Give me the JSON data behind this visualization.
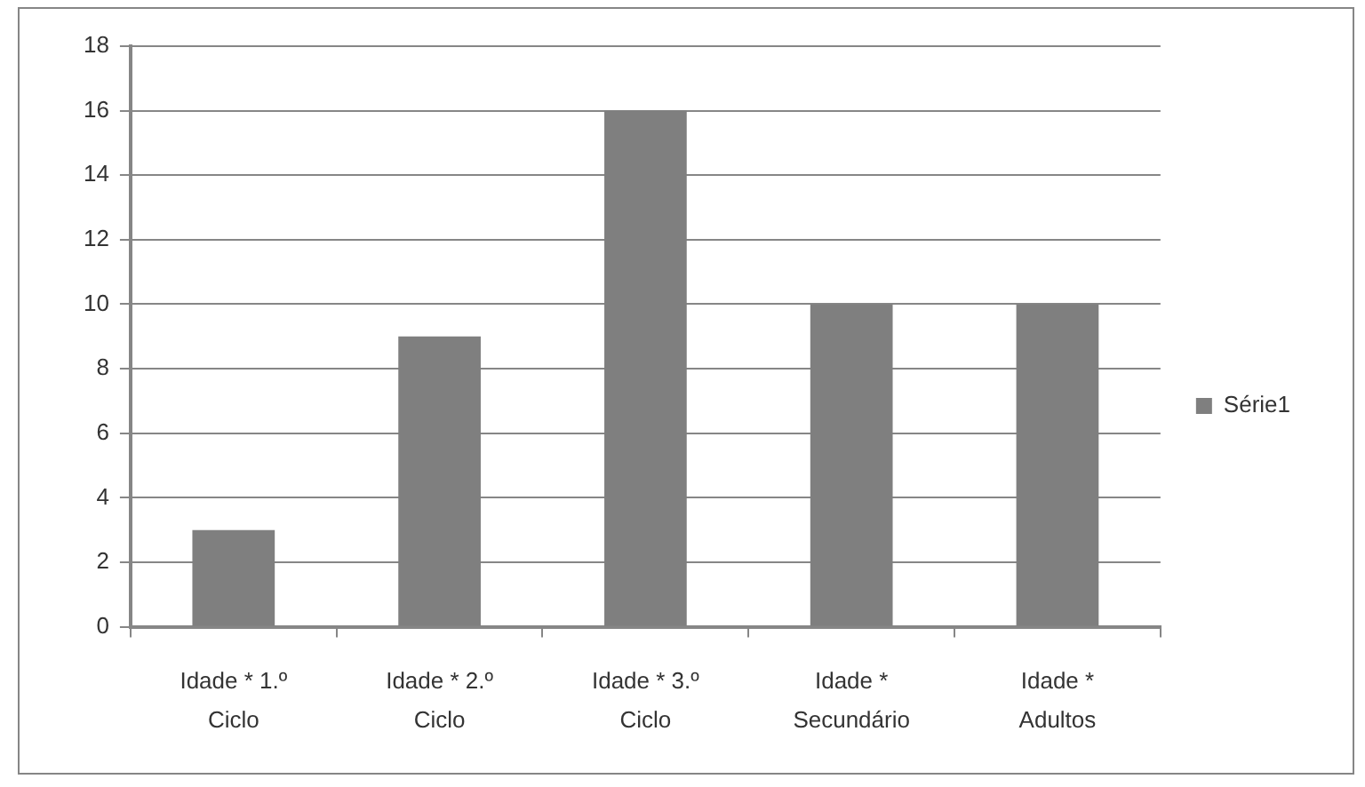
{
  "chart_data": {
    "type": "bar",
    "categories": [
      "Idade * 1.º Ciclo",
      "Idade * 2.º Ciclo",
      "Idade * 3.º Ciclo",
      "Idade * Secundário",
      "Idade * Adultos"
    ],
    "series": [
      {
        "name": "Série1",
        "color": "#7f7f7f",
        "values": [
          3,
          9,
          16,
          10,
          10
        ]
      }
    ],
    "ylim": [
      0,
      18
    ],
    "yticks": [
      0,
      2,
      4,
      6,
      8,
      10,
      12,
      14,
      16,
      18
    ],
    "grid": "y",
    "legend": "right"
  }
}
